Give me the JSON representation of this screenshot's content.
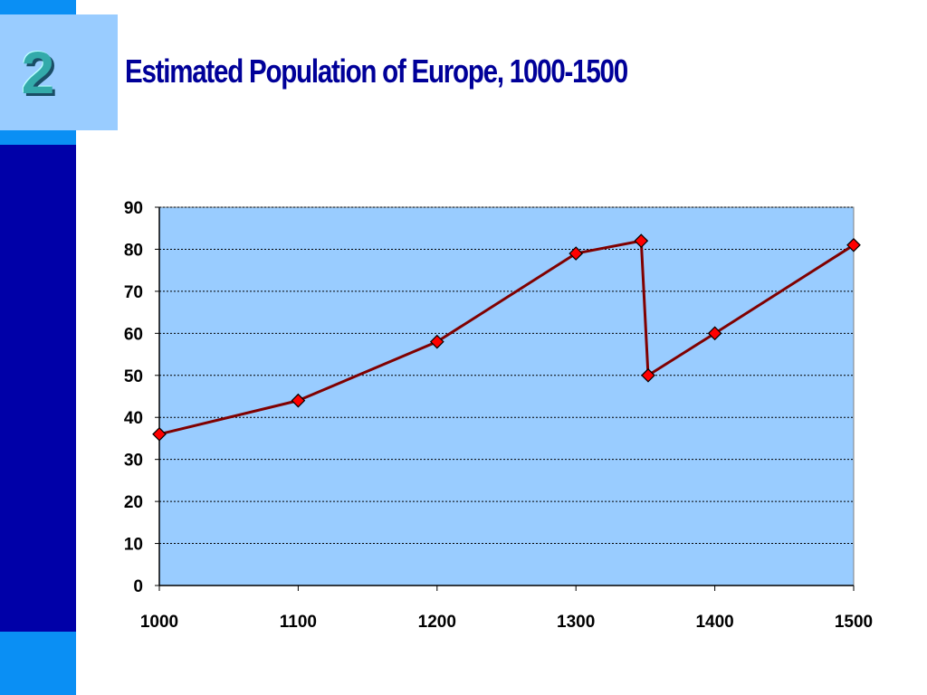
{
  "slide": {
    "number": "2",
    "title": "Estimated Population of Europe, 1000-1500"
  },
  "colors": {
    "plot_background": "#99ccff",
    "line": "#800000",
    "marker": "#ff0000",
    "left_bar_dark": "#0000a8",
    "left_bar_light": "#0a8ff4",
    "title": "#000099"
  },
  "chart_data": {
    "type": "line",
    "title": "Estimated Population of Europe, 1000-1500",
    "xlabel": "",
    "ylabel": "",
    "x": [
      1000,
      1100,
      1200,
      1300,
      1347,
      1352,
      1400,
      1500
    ],
    "series": [
      {
        "values": [
          36,
          44,
          58,
          79,
          82,
          50,
          60,
          81
        ]
      }
    ],
    "xlim": [
      1000,
      1500
    ],
    "ylim": [
      0,
      90
    ],
    "x_ticks": [
      "1000",
      "1100",
      "1200",
      "1300",
      "1400",
      "1500"
    ],
    "y_ticks": [
      "0",
      "10",
      "20",
      "30",
      "40",
      "50",
      "60",
      "70",
      "80",
      "90"
    ],
    "grid": "horizontal dotted",
    "legend": "none",
    "marker": "diamond"
  }
}
